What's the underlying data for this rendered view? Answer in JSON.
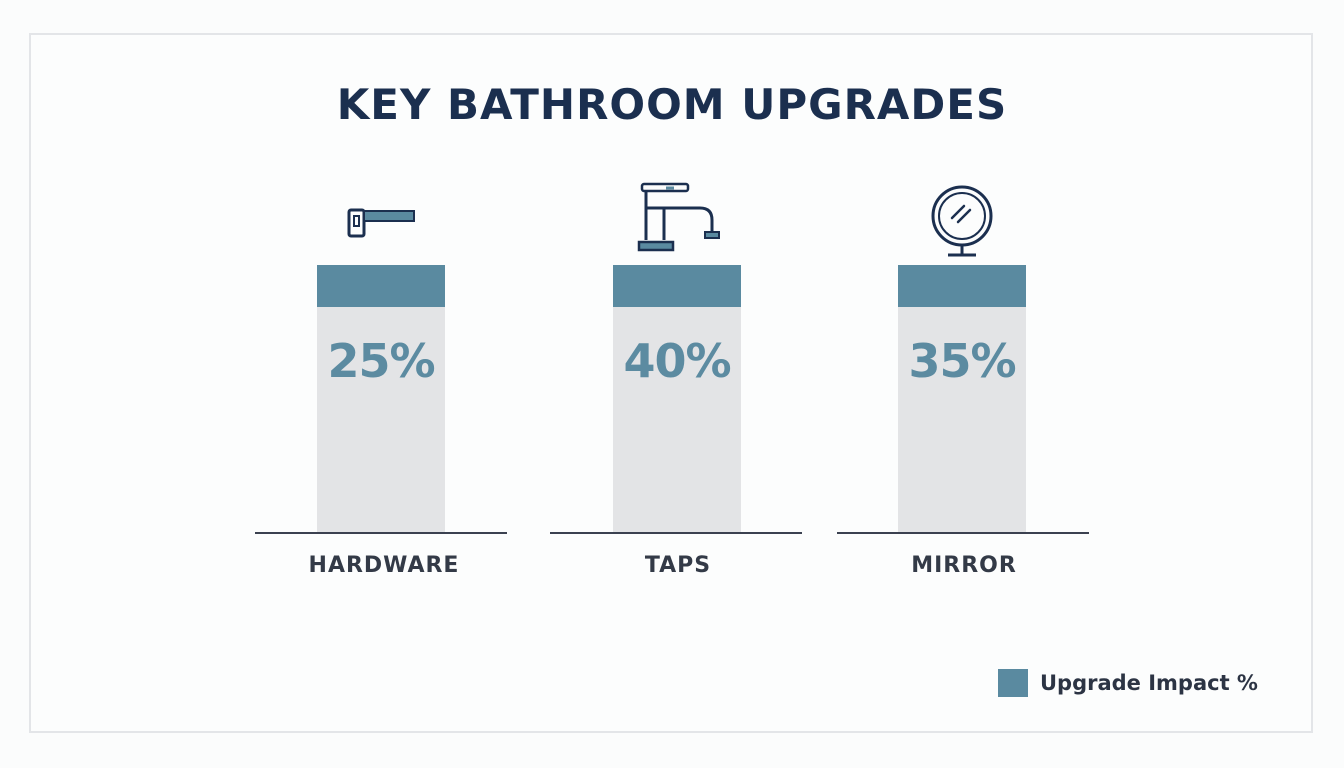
{
  "chart_data": {
    "type": "bar",
    "title": "KEY BATHROOM UPGRADES",
    "categories": [
      "HARDWARE",
      "TAPS",
      "MIRROR"
    ],
    "series": [
      {
        "name": "Upgrade Impact %",
        "values": [
          25,
          40,
          35
        ]
      }
    ],
    "value_labels": [
      "25%",
      "40%",
      "35%"
    ],
    "icons": [
      "door-handle-icon",
      "tap-faucet-icon",
      "round-mirror-icon"
    ],
    "legend": {
      "position": "bottom-right",
      "label": "Upgrade Impact %"
    },
    "colors": {
      "bar_accent": "#5a8aa0",
      "bar_background": "#e3e4e6",
      "label": "#5c8ba1",
      "title": "#1b2f4f"
    },
    "grid": false
  }
}
